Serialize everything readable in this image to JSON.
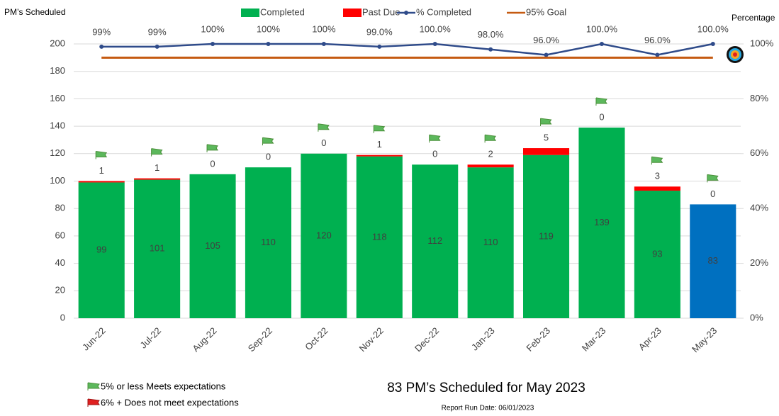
{
  "chart_data": {
    "type": "bar",
    "y_axis_label": "PM’s Scheduled",
    "y2_axis_label": "Percentage",
    "categories": [
      "Jun-22",
      "Jul-22",
      "Aug-22",
      "Sep-22",
      "Oct-22",
      "Nov-22",
      "Dec-22",
      "Jan-23",
      "Feb-23",
      "Mar-23",
      "Apr-23",
      "May-23"
    ],
    "series": [
      {
        "name": "Completed",
        "color": "#00b050",
        "colors": [
          "#00b050",
          "#00b050",
          "#00b050",
          "#00b050",
          "#00b050",
          "#00b050",
          "#00b050",
          "#00b050",
          "#00b050",
          "#00b050",
          "#00b050",
          "#0070c0"
        ],
        "values": [
          99,
          101,
          105,
          110,
          120,
          118,
          112,
          110,
          119,
          139,
          93,
          83
        ]
      },
      {
        "name": "Past Due",
        "color": "#ff0000",
        "values": [
          1,
          1,
          0,
          0,
          0,
          1,
          0,
          2,
          5,
          0,
          3,
          0
        ]
      },
      {
        "name": "% Completed",
        "color": "#2f4b8a",
        "axis": "y2",
        "values": [
          99,
          99,
          100,
          100,
          100,
          99,
          100,
          98,
          96,
          100,
          96,
          100
        ],
        "value_labels": [
          "99%",
          "99%",
          "100%",
          "100%",
          "100%",
          "99.0%",
          "100.0%",
          "98.0%",
          "96.0%",
          "100.0%",
          "96.0%",
          "100.0%"
        ]
      },
      {
        "name": "95% Goal",
        "color": "#c55a11",
        "axis": "y2",
        "values": [
          95,
          95,
          95,
          95,
          95,
          95,
          95,
          95,
          95,
          95,
          95,
          95
        ]
      }
    ],
    "ylim": [
      0,
      200
    ],
    "yticks": [
      0,
      20,
      40,
      60,
      80,
      100,
      120,
      140,
      160,
      180,
      200
    ],
    "y2lim": [
      0,
      100
    ],
    "y2ticks": [
      {
        "value": 0,
        "label": "0%"
      },
      {
        "value": 20,
        "label": "20%"
      },
      {
        "value": 40,
        "label": "40%"
      },
      {
        "value": 60,
        "label": "60%"
      },
      {
        "value": 80,
        "label": "80%"
      },
      {
        "value": 100,
        "label": "100%"
      }
    ],
    "grid": true,
    "flag_notes": [
      "5% or less Meets expectations",
      "6% +  Does not meet expectations"
    ],
    "summary": "83 PM’s Scheduled for May 2023",
    "run_date": "Report Run Date: 06/01/2023"
  }
}
